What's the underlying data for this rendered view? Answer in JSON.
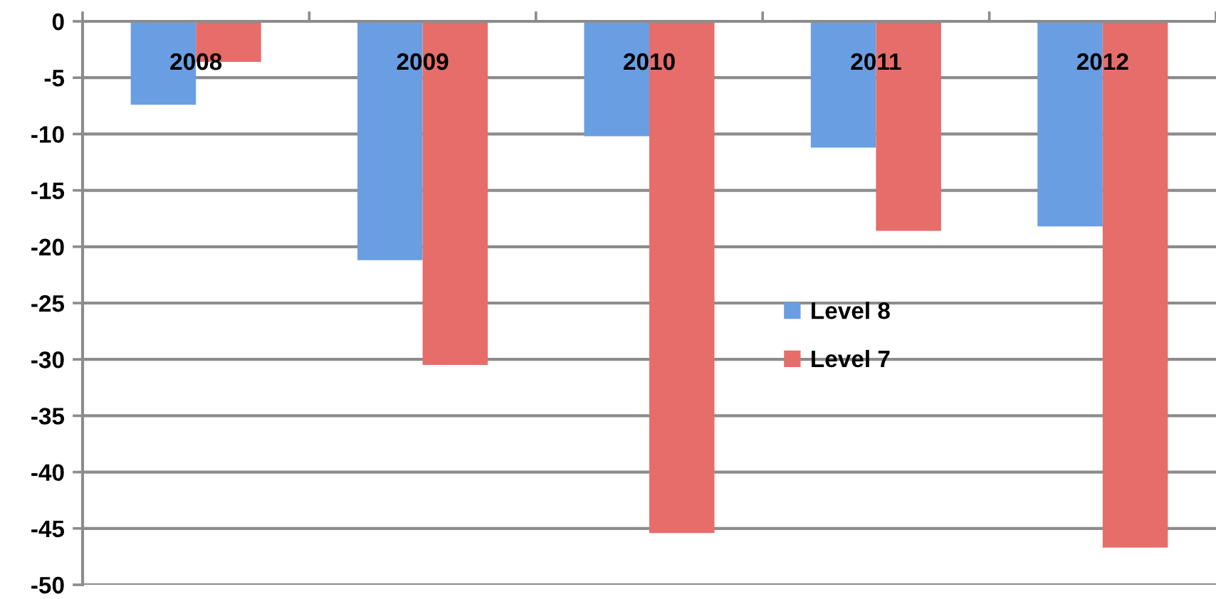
{
  "chart_data": {
    "type": "bar",
    "categories": [
      "2008",
      "2009",
      "2010",
      "2011",
      "2012"
    ],
    "series": [
      {
        "name": "Level 8",
        "color": "#6a9ee2",
        "values": [
          -7.4,
          -21.2,
          -10.2,
          -11.2,
          -18.2
        ]
      },
      {
        "name": "Level 7",
        "color": "#e76d6b",
        "values": [
          -3.6,
          -30.5,
          -45.4,
          -18.6,
          -46.7
        ]
      }
    ],
    "ylim": [
      -50,
      0
    ],
    "yticks": [
      0,
      -5,
      -10,
      -15,
      -20,
      -25,
      -30,
      -35,
      -40,
      -45,
      -50
    ],
    "grid": "y",
    "legend": "right"
  }
}
